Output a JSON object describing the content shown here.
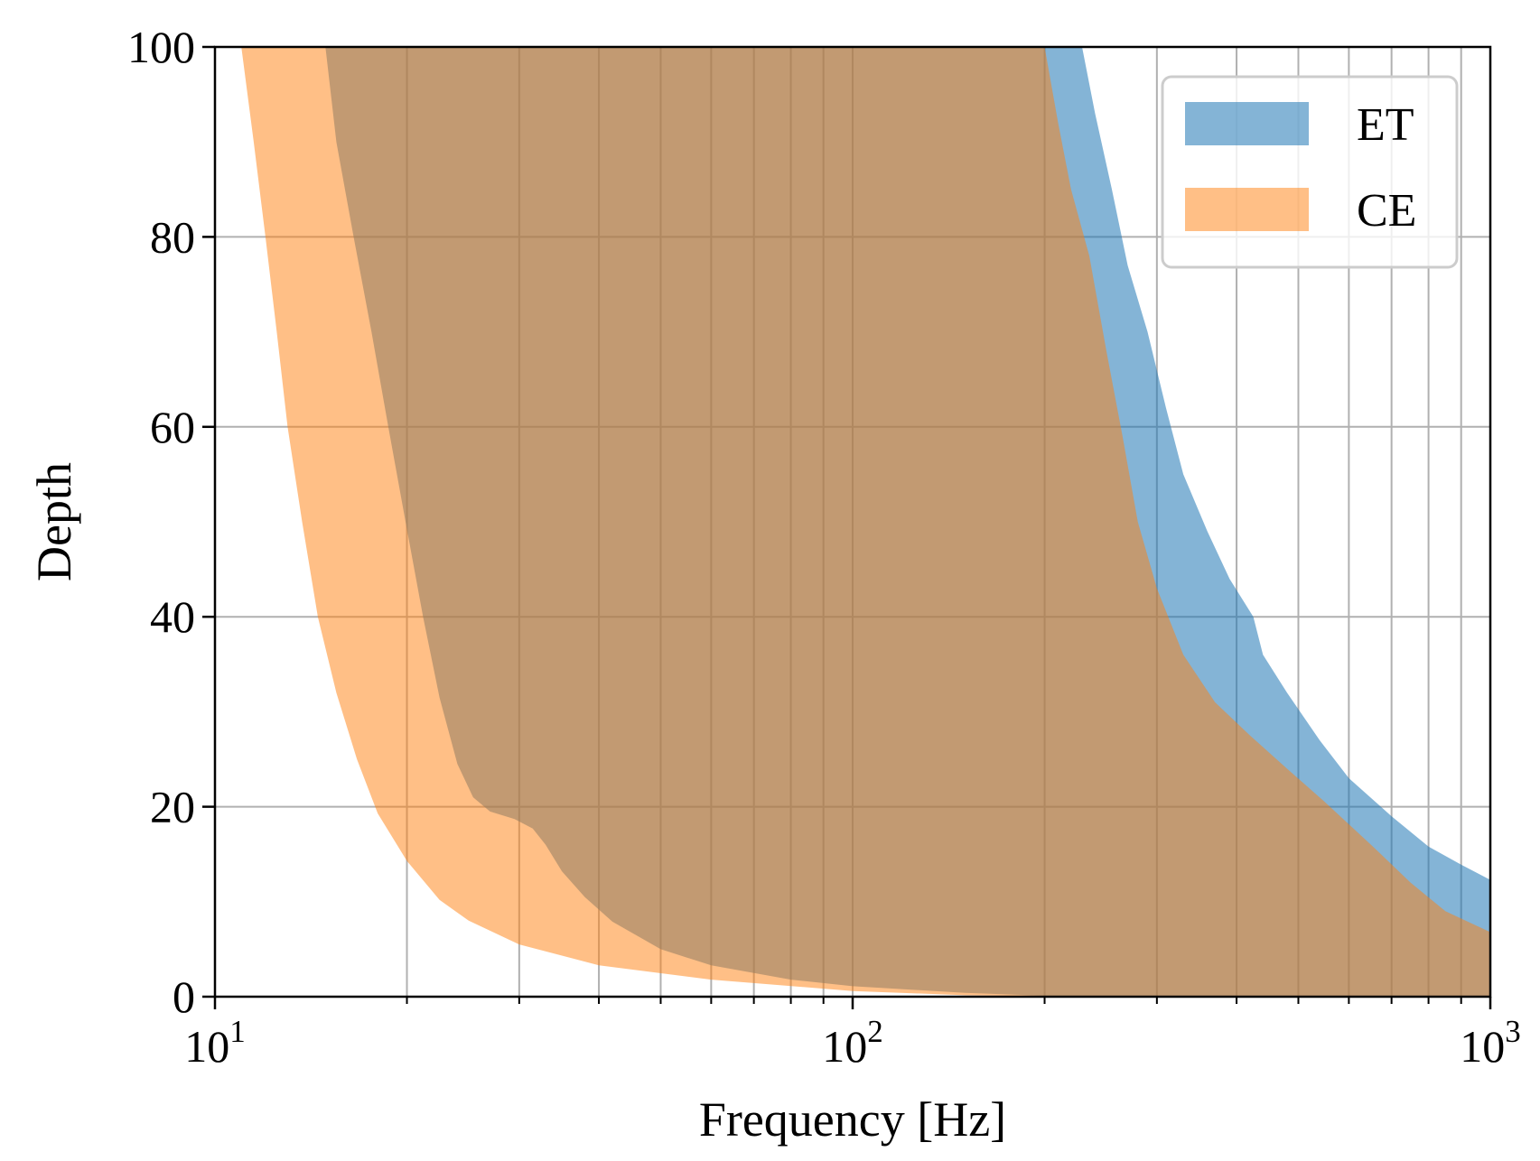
{
  "chart_data": {
    "type": "area",
    "xlabel": "Frequency [Hz]",
    "ylabel": "Depth",
    "xscale": "log",
    "xlim": [
      10,
      1000
    ],
    "ylim": [
      0,
      100
    ],
    "grid": true,
    "legend_position": "top-right",
    "x_ticks": [
      {
        "value": 10,
        "base": "10",
        "exp": "1"
      },
      {
        "value": 100,
        "base": "10",
        "exp": "2"
      },
      {
        "value": 1000,
        "base": "10",
        "exp": "3"
      }
    ],
    "y_ticks": [
      {
        "value": 0,
        "label": "0"
      },
      {
        "value": 20,
        "label": "20"
      },
      {
        "value": 40,
        "label": "40"
      },
      {
        "value": 60,
        "label": "60"
      },
      {
        "value": 80,
        "label": "80"
      },
      {
        "value": 100,
        "label": "100"
      }
    ],
    "series": [
      {
        "name": "ET",
        "color": "#1f77b4",
        "alpha": 0.55,
        "upper": [
          [
            14.9,
            100
          ],
          [
            15.5,
            90
          ],
          [
            16.5,
            80
          ],
          [
            17.6,
            70
          ],
          [
            18.7,
            60
          ],
          [
            19.9,
            50
          ],
          [
            21.2,
            40
          ],
          [
            22.5,
            31.5
          ],
          [
            24.0,
            24.5
          ],
          [
            25.4,
            21
          ],
          [
            27.0,
            19.5
          ],
          [
            29.5,
            18.7
          ],
          [
            31.5,
            17.7
          ],
          [
            33.0,
            16
          ],
          [
            35.0,
            13.2
          ],
          [
            38.0,
            10.5
          ],
          [
            42.0,
            7.9
          ],
          [
            50.0,
            5
          ],
          [
            60.0,
            3.3
          ],
          [
            80.0,
            1.8
          ],
          [
            100,
            1.1
          ],
          [
            150,
            0.4
          ],
          [
            200,
            0.1
          ],
          [
            1000,
            0.05
          ]
        ],
        "lower": [
          [
            229,
            100
          ],
          [
            240,
            93
          ],
          [
            255,
            85
          ],
          [
            270,
            77
          ],
          [
            290,
            70
          ],
          [
            310,
            62
          ],
          [
            330,
            55
          ],
          [
            360,
            49
          ],
          [
            390,
            44
          ],
          [
            425,
            40
          ],
          [
            440,
            36
          ],
          [
            480,
            32
          ],
          [
            540,
            27
          ],
          [
            600,
            23
          ],
          [
            700,
            19
          ],
          [
            800,
            15.8
          ],
          [
            900,
            13.9
          ],
          [
            1000,
            12.3
          ]
        ]
      },
      {
        "name": "CE",
        "color": "#ff7f0e",
        "alpha": 0.5,
        "upper": [
          [
            11.0,
            100
          ],
          [
            11.5,
            90
          ],
          [
            12.0,
            80
          ],
          [
            12.5,
            70
          ],
          [
            13.0,
            60
          ],
          [
            13.7,
            50
          ],
          [
            14.5,
            40
          ],
          [
            15.5,
            32
          ],
          [
            16.7,
            25
          ],
          [
            18.0,
            19.3
          ],
          [
            20.0,
            14.3
          ],
          [
            22.5,
            10.2
          ],
          [
            25.0,
            8.0
          ],
          [
            30.0,
            5.5
          ],
          [
            40.0,
            3.3
          ],
          [
            60.0,
            1.8
          ],
          [
            100,
            0.6
          ],
          [
            150,
            0.15
          ],
          [
            200,
            0.05
          ],
          [
            1000,
            0.02
          ]
        ],
        "lower": [
          [
            200,
            100
          ],
          [
            210,
            92
          ],
          [
            220,
            85
          ],
          [
            235,
            78
          ],
          [
            250,
            68
          ],
          [
            265,
            59
          ],
          [
            280,
            50
          ],
          [
            300,
            43
          ],
          [
            330,
            36
          ],
          [
            370,
            31
          ],
          [
            420,
            27.5
          ],
          [
            480,
            24
          ],
          [
            550,
            20.5
          ],
          [
            650,
            16
          ],
          [
            750,
            12
          ],
          [
            850,
            9
          ],
          [
            1000,
            6.8
          ]
        ]
      }
    ]
  }
}
